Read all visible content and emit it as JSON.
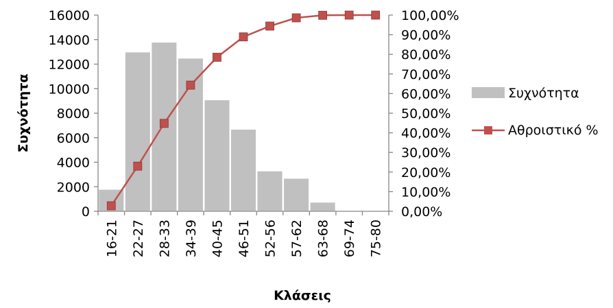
{
  "chart_data": {
    "type": "bar",
    "categories": [
      "16-21",
      "22-27",
      "28-33",
      "34-39",
      "40-45",
      "46-51",
      "52-56",
      "57-62",
      "63-68",
      "69-74",
      "75-80"
    ],
    "series": [
      {
        "name": "Συχνότητα",
        "type": "bar",
        "axis": "left",
        "values": [
          1800,
          13000,
          13800,
          12500,
          9100,
          6700,
          3300,
          2700,
          750,
          0,
          0
        ],
        "color": "#c0c0c0"
      },
      {
        "name": "Αθροιστικό %",
        "type": "line",
        "axis": "right",
        "values": [
          2.8,
          23.0,
          44.8,
          64.3,
          78.5,
          88.9,
          94.4,
          98.6,
          99.9,
          100.0,
          100.0
        ],
        "color": "#c0504d"
      }
    ],
    "xlabel": "Κλάσεις",
    "ylabel": "Συχνότητα",
    "ylim": [
      0,
      16000
    ],
    "y_ticks": [
      "0",
      "2000",
      "4000",
      "6000",
      "8000",
      "10000",
      "12000",
      "14000",
      "16000"
    ],
    "y2lim": [
      0,
      100
    ],
    "y2_ticks": [
      "0,00%",
      "10,00%",
      "20,00%",
      "30,00%",
      "40,00%",
      "50,00%",
      "60,00%",
      "70,00%",
      "80,00%",
      "90,00%",
      "100,00%"
    ],
    "grid": false,
    "legend": "right"
  }
}
